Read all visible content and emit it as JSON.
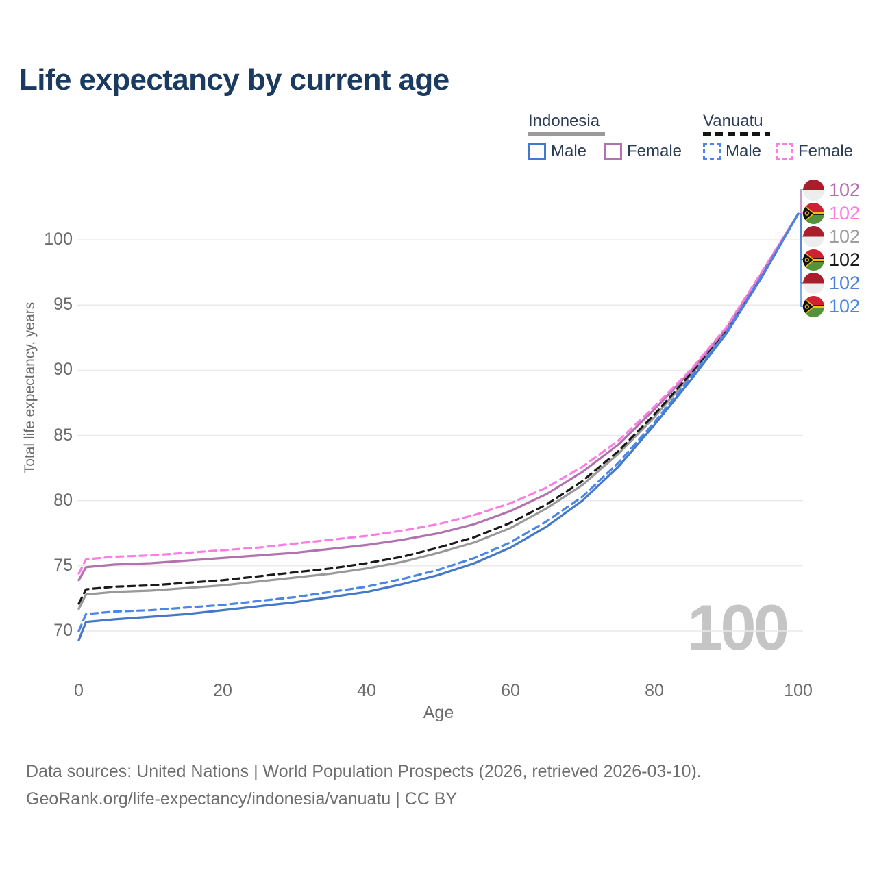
{
  "title": "Life expectancy by current age",
  "watermark": "100",
  "legend": {
    "groups": [
      {
        "label": "Indonesia",
        "line_style": "solid",
        "underline_color": "#9a9a9a",
        "items": [
          {
            "label": "Male",
            "color": "#4478c8",
            "dashed": false
          },
          {
            "label": "Female",
            "color": "#b172af",
            "dashed": false
          }
        ]
      },
      {
        "label": "Vanuatu",
        "line_style": "dashed",
        "underline_color": "#141414",
        "items": [
          {
            "label": "Male",
            "color": "#4a86e8",
            "dashed": true
          },
          {
            "label": "Female",
            "color": "#ff7ce4",
            "dashed": true
          }
        ]
      }
    ]
  },
  "end_labels": [
    {
      "value": "102",
      "country": "indonesia",
      "series": "Indonesia Female",
      "color": "#b172af"
    },
    {
      "value": "102",
      "country": "vanuatu",
      "series": "Vanuatu Female",
      "color": "#ff7ce4"
    },
    {
      "value": "102",
      "country": "indonesia",
      "series": "Indonesia Total",
      "color": "#9e9e9e"
    },
    {
      "value": "102",
      "country": "vanuatu",
      "series": "Vanuatu Total",
      "color": "#1a1a1a"
    },
    {
      "value": "102",
      "country": "indonesia",
      "series": "Indonesia Male",
      "color": "#4d82d9"
    },
    {
      "value": "102",
      "country": "vanuatu",
      "series": "Vanuatu Male",
      "color": "#4a86e8"
    }
  ],
  "footer": {
    "line1": "Data sources: United Nations | World Population Prospects (2026, retrieved 2026-03-10).",
    "line2": "GeoRank.org/life-expectancy/indonesia/vanuatu | CC BY"
  },
  "chart_data": {
    "type": "line",
    "title": "Life expectancy by current age",
    "xlabel": "Age",
    "ylabel": "Total life expectancy, years",
    "xlim": [
      0,
      100
    ],
    "ylim": [
      69,
      103
    ],
    "xticks": [
      0,
      20,
      40,
      60,
      80,
      100
    ],
    "yticks": [
      70,
      75,
      80,
      85,
      90,
      95,
      100
    ],
    "grid": "horizontal",
    "legend_position": "top-right",
    "x": [
      0,
      1,
      5,
      10,
      15,
      20,
      25,
      30,
      35,
      40,
      45,
      50,
      55,
      60,
      65,
      70,
      75,
      80,
      85,
      90,
      95,
      100
    ],
    "series": [
      {
        "name": "Indonesia Total",
        "country": "Indonesia",
        "sex": "Total",
        "color": "#999999",
        "dashed": false,
        "label_row": 2,
        "values": [
          71.7,
          72.8,
          73.0,
          73.1,
          73.3,
          73.5,
          73.8,
          74.1,
          74.4,
          74.8,
          75.3,
          76.0,
          76.8,
          77.9,
          79.4,
          81.2,
          83.6,
          86.4,
          89.6,
          93.0,
          97.4,
          102
        ]
      },
      {
        "name": "Vanuatu Total",
        "country": "Vanuatu",
        "sex": "Total",
        "color": "#1a1a1a",
        "dashed": true,
        "label_row": 3,
        "values": [
          72.1,
          73.2,
          73.4,
          73.5,
          73.7,
          73.9,
          74.2,
          74.5,
          74.8,
          75.2,
          75.7,
          76.4,
          77.2,
          78.3,
          79.7,
          81.5,
          83.8,
          86.6,
          89.7,
          93.1,
          97.4,
          102
        ]
      },
      {
        "name": "Indonesia Female",
        "country": "Indonesia",
        "sex": "Female",
        "color": "#b172af",
        "dashed": false,
        "label_row": 0,
        "values": [
          73.9,
          74.9,
          75.1,
          75.2,
          75.4,
          75.6,
          75.8,
          76.0,
          76.3,
          76.6,
          77.0,
          77.5,
          78.2,
          79.2,
          80.5,
          82.2,
          84.3,
          87.0,
          89.9,
          93.2,
          97.5,
          102
        ]
      },
      {
        "name": "Vanuatu Female",
        "country": "Vanuatu",
        "sex": "Female",
        "color": "#ff7ce4",
        "dashed": true,
        "label_row": 1,
        "values": [
          74.4,
          75.5,
          75.7,
          75.8,
          76.0,
          76.2,
          76.4,
          76.7,
          77.0,
          77.3,
          77.7,
          78.2,
          78.9,
          79.8,
          81.0,
          82.6,
          84.6,
          87.2,
          90.0,
          93.3,
          97.6,
          102
        ]
      },
      {
        "name": "Indonesia Male",
        "country": "Indonesia",
        "sex": "Male",
        "color": "#4478c8",
        "dashed": false,
        "label_row": 4,
        "values": [
          69.3,
          70.7,
          70.9,
          71.1,
          71.3,
          71.6,
          71.9,
          72.2,
          72.6,
          73.0,
          73.6,
          74.3,
          75.2,
          76.4,
          78.0,
          80.0,
          82.6,
          85.8,
          89.2,
          92.8,
          97.2,
          102
        ]
      },
      {
        "name": "Vanuatu Male",
        "country": "Vanuatu",
        "sex": "Male",
        "color": "#4a86e8",
        "dashed": true,
        "label_row": 5,
        "values": [
          70.0,
          71.3,
          71.5,
          71.6,
          71.8,
          72.0,
          72.3,
          72.6,
          73.0,
          73.4,
          74.0,
          74.7,
          75.6,
          76.8,
          78.4,
          80.3,
          82.9,
          86.0,
          89.4,
          92.9,
          97.3,
          102
        ]
      }
    ]
  }
}
